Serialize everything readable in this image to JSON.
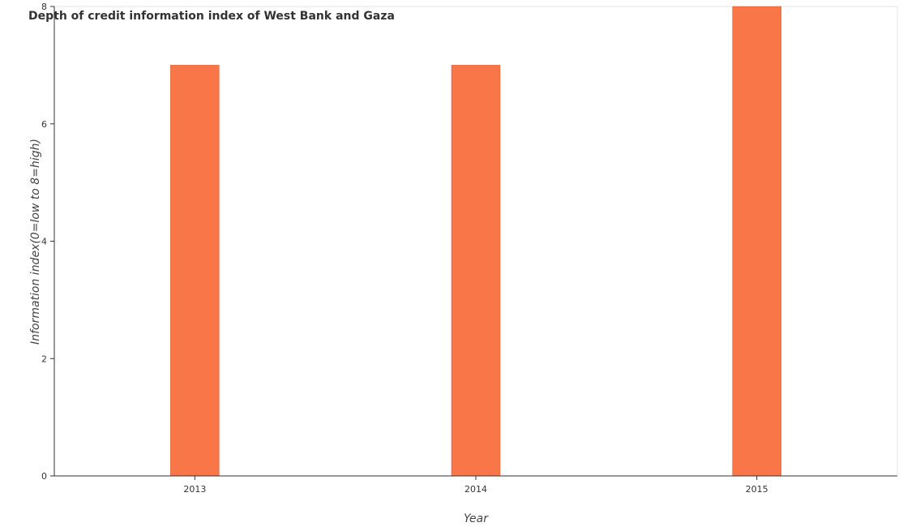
{
  "chart_data": {
    "type": "bar",
    "title": "Depth of credit information index of West Bank and Gaza",
    "xlabel": "Year",
    "ylabel": "Information index(0=low to 8=high)",
    "categories": [
      "2013",
      "2014",
      "2015"
    ],
    "values": [
      7,
      7,
      8
    ],
    "ylim": [
      0,
      8
    ],
    "yticks": [
      0,
      2,
      4,
      6,
      8
    ],
    "grid": false,
    "legend": "none",
    "colors": {
      "bar_fill": "#f87648",
      "bar_stroke": "#d95a2e"
    }
  }
}
